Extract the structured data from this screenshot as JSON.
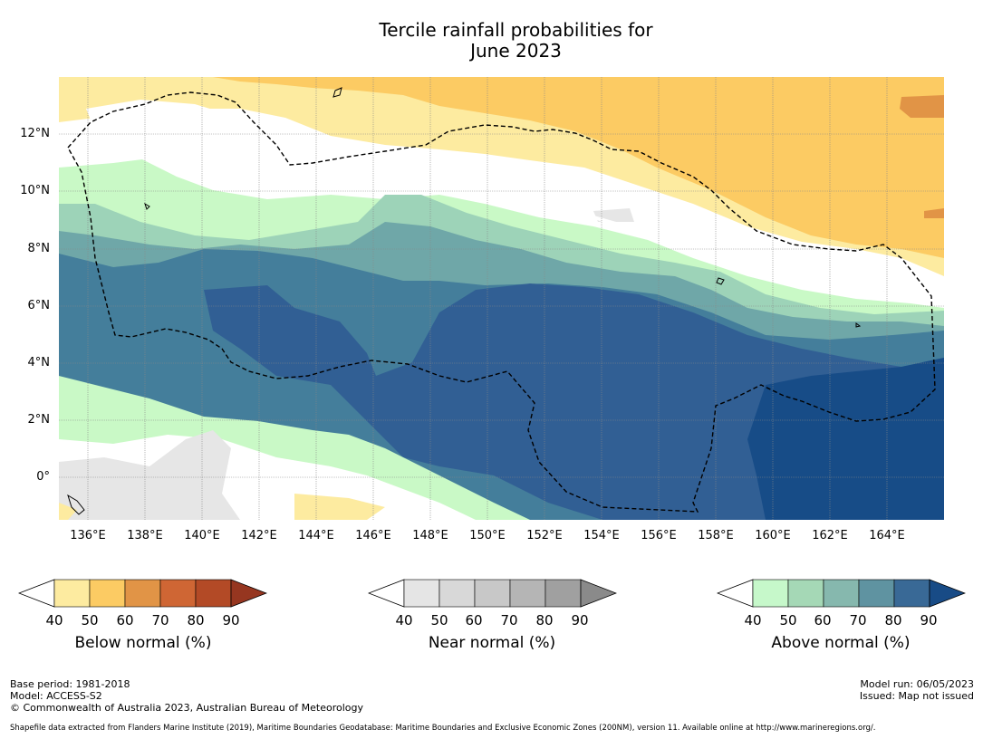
{
  "title": {
    "line1": "Tercile rainfall probabilities for",
    "line2": "June 2023"
  },
  "map": {
    "lat_labels": [
      "12°N",
      "10°N",
      "8°N",
      "6°N",
      "4°N",
      "2°N",
      "0°"
    ],
    "lon_labels": [
      "136°E",
      "138°E",
      "140°E",
      "142°E",
      "144°E",
      "146°E",
      "148°E",
      "150°E",
      "152°E",
      "154°E",
      "156°E",
      "158°E",
      "160°E",
      "162°E",
      "164°E"
    ],
    "colors": {
      "below_40": "#fdeba0",
      "below_50": "#fccb63",
      "below_60": "#e19446",
      "near_40": "#e6e6e6",
      "above_40": "#c9f9c6",
      "above_50": "#9dd3b8",
      "above_60": "#6fa7a8",
      "above_70": "#447e9b",
      "above_80": "#315f94",
      "above_90": "#174c87"
    }
  },
  "legends": [
    {
      "name": "below",
      "title": "Below normal (%)",
      "ticks": [
        "40",
        "50",
        "60",
        "70",
        "80",
        "90"
      ],
      "colors": [
        "#fdeba0",
        "#fccb63",
        "#e19446",
        "#cf6634",
        "#b34a26",
        "#963620"
      ]
    },
    {
      "name": "near",
      "title": "Near normal (%)",
      "ticks": [
        "40",
        "50",
        "60",
        "70",
        "80",
        "90"
      ],
      "colors": [
        "#e5e5e5",
        "#d8d8d8",
        "#c8c8c8",
        "#b5b5b5",
        "#a0a0a0",
        "#8a8a8a"
      ]
    },
    {
      "name": "above",
      "title": "Above normal (%)",
      "ticks": [
        "40",
        "50",
        "60",
        "70",
        "80",
        "90"
      ],
      "colors": [
        "#c6f8ca",
        "#a5d8b6",
        "#86b8ae",
        "#5f93a1",
        "#396996",
        "#184b86"
      ]
    }
  ],
  "footer": {
    "base_period": "Base period: 1981-2018",
    "model": "Model: ACCESS-S2",
    "copyright": "© Commonwealth of Australia 2023, Australian Bureau of Meteorology",
    "model_run": "Model run: 06/05/2023",
    "issued": "Issued: Map not issued",
    "shapefile": "Shapefile data extracted from Flanders Marine Institute (2019), Maritime Boundaries Geodatabase: Maritime Boundaries and Exclusive Economic Zones (200NM), version 11. Available online at http://www.marineregions.org/."
  }
}
